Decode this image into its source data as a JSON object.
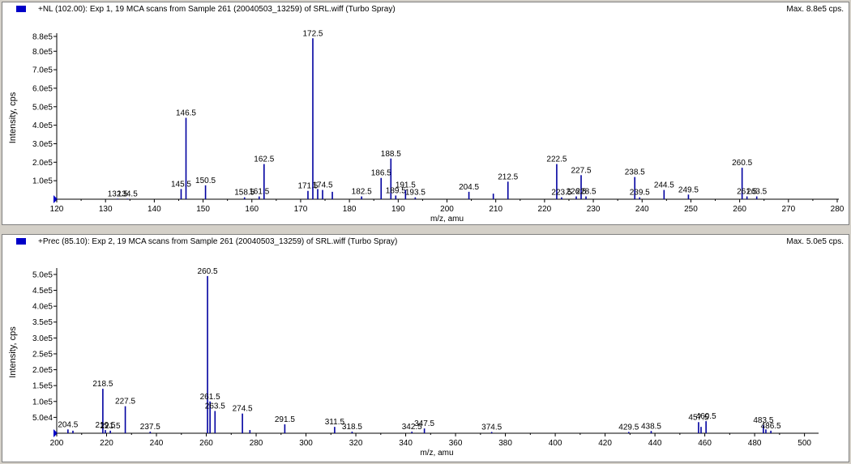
{
  "panels": [
    {
      "title": "+NL (102.00): Exp 1, 19 MCA scans from Sample 261 (20040503_13259) of SRL.wiff (Turbo Spray)",
      "max_label": "Max. 8.8e5 cps."
    },
    {
      "title": "+Prec (85.10): Exp 2, 19 MCA scans from Sample 261 (20040503_13259) of SRL.wiff (Turbo Spray)",
      "max_label": "Max. 5.0e5 cps."
    }
  ],
  "colors": {
    "trace": "#0000a0",
    "marker": "#0000c8",
    "axis": "#000000"
  },
  "chart_data": [
    {
      "type": "bar",
      "title": "+NL (102.00): Exp 1, 19 MCA scans from Sample 261 (20040503_13259) of SRL.wiff (Turbo Spray)",
      "xlabel": "m/z, amu",
      "ylabel": "Intensity, cps",
      "xlim": [
        120,
        280
      ],
      "ylim": [
        0,
        880000
      ],
      "xticks": [
        120,
        130,
        140,
        150,
        160,
        170,
        180,
        190,
        200,
        210,
        220,
        230,
        240,
        250,
        260,
        270,
        280
      ],
      "yticks": [
        {
          "v": 100000,
          "label": "1.0e5"
        },
        {
          "v": 200000,
          "label": "2.0e5"
        },
        {
          "v": 300000,
          "label": "3.0e5"
        },
        {
          "v": 400000,
          "label": "4.0e5"
        },
        {
          "v": 500000,
          "label": "5.0e5"
        },
        {
          "v": 600000,
          "label": "6.0e5"
        },
        {
          "v": 700000,
          "label": "7.0e5"
        },
        {
          "v": 800000,
          "label": "8.0e5"
        },
        {
          "v": 880000,
          "label": "8.8e5"
        }
      ],
      "peaks": [
        {
          "x": 132.5,
          "y": 3000,
          "label": "132.5"
        },
        {
          "x": 134.5,
          "y": 3000,
          "label": "134.5"
        },
        {
          "x": 145.5,
          "y": 55000,
          "label": "145.5"
        },
        {
          "x": 146.5,
          "y": 440000,
          "label": "146.5"
        },
        {
          "x": 150.5,
          "y": 75000,
          "label": "150.5"
        },
        {
          "x": 158.5,
          "y": 10000,
          "label": "158.5"
        },
        {
          "x": 161.5,
          "y": 15000,
          "label": "161.5"
        },
        {
          "x": 162.5,
          "y": 190000,
          "label": "162.5"
        },
        {
          "x": 171.5,
          "y": 45000,
          "label": "171.5"
        },
        {
          "x": 172.5,
          "y": 870000,
          "label": "172.5"
        },
        {
          "x": 173.5,
          "y": 55000,
          "label": ""
        },
        {
          "x": 174.5,
          "y": 50000,
          "label": "174.5"
        },
        {
          "x": 176.5,
          "y": 40000,
          "label": ""
        },
        {
          "x": 182.5,
          "y": 15000,
          "label": "182.5"
        },
        {
          "x": 186.5,
          "y": 115000,
          "label": "186.5"
        },
        {
          "x": 188.5,
          "y": 220000,
          "label": "188.5"
        },
        {
          "x": 189.5,
          "y": 20000,
          "label": "189.5"
        },
        {
          "x": 191.5,
          "y": 50000,
          "label": "191.5"
        },
        {
          "x": 193.5,
          "y": 10000,
          "label": "193.5"
        },
        {
          "x": 204.5,
          "y": 40000,
          "label": "204.5"
        },
        {
          "x": 209.5,
          "y": 30000,
          "label": ""
        },
        {
          "x": 212.5,
          "y": 95000,
          "label": "212.5"
        },
        {
          "x": 222.5,
          "y": 190000,
          "label": "222.5"
        },
        {
          "x": 223.5,
          "y": 10000,
          "label": "223.5"
        },
        {
          "x": 226.5,
          "y": 15000,
          "label": "226.5"
        },
        {
          "x": 227.5,
          "y": 130000,
          "label": "227.5"
        },
        {
          "x": 228.5,
          "y": 15000,
          "label": "228.5"
        },
        {
          "x": 238.5,
          "y": 120000,
          "label": "238.5"
        },
        {
          "x": 239.5,
          "y": 10000,
          "label": "239.5"
        },
        {
          "x": 244.5,
          "y": 50000,
          "label": "244.5"
        },
        {
          "x": 249.5,
          "y": 25000,
          "label": "249.5"
        },
        {
          "x": 260.5,
          "y": 170000,
          "label": "260.5"
        },
        {
          "x": 261.5,
          "y": 15000,
          "label": "261.5"
        },
        {
          "x": 263.5,
          "y": 15000,
          "label": "263.5"
        }
      ]
    },
    {
      "type": "bar",
      "title": "+Prec (85.10): Exp 2, 19 MCA scans from Sample 261 (20040503_13259) of SRL.wiff (Turbo Spray)",
      "xlabel": "m/z, amu",
      "ylabel": "Intensity, cps",
      "xlim": [
        200,
        505
      ],
      "ylim": [
        0,
        510000
      ],
      "xticks": [
        200,
        220,
        240,
        260,
        280,
        300,
        320,
        340,
        360,
        380,
        400,
        420,
        440,
        460,
        480,
        500
      ],
      "yticks": [
        {
          "v": 50000,
          "label": "5.0e4"
        },
        {
          "v": 100000,
          "label": "1.0e5"
        },
        {
          "v": 150000,
          "label": "1.5e5"
        },
        {
          "v": 200000,
          "label": "2.0e5"
        },
        {
          "v": 250000,
          "label": "2.5e5"
        },
        {
          "v": 300000,
          "label": "3.0e5"
        },
        {
          "v": 350000,
          "label": "3.5e5"
        },
        {
          "v": 400000,
          "label": "4.0e5"
        },
        {
          "v": 450000,
          "label": "4.5e5"
        },
        {
          "v": 500000,
          "label": "5.0e5"
        }
      ],
      "peaks": [
        {
          "x": 204.5,
          "y": 12000,
          "label": "204.5"
        },
        {
          "x": 206.5,
          "y": 8000,
          "label": ""
        },
        {
          "x": 218.5,
          "y": 140000,
          "label": "218.5"
        },
        {
          "x": 219.5,
          "y": 10000,
          "label": "219.5"
        },
        {
          "x": 221.5,
          "y": 8000,
          "label": "221.5"
        },
        {
          "x": 227.5,
          "y": 85000,
          "label": "227.5"
        },
        {
          "x": 237.5,
          "y": 5000,
          "label": "237.5"
        },
        {
          "x": 260.5,
          "y": 495000,
          "label": "260.5"
        },
        {
          "x": 261.5,
          "y": 100000,
          "label": "261.5"
        },
        {
          "x": 263.5,
          "y": 70000,
          "label": "263.5"
        },
        {
          "x": 274.5,
          "y": 62000,
          "label": "274.5"
        },
        {
          "x": 277.5,
          "y": 10000,
          "label": ""
        },
        {
          "x": 291.5,
          "y": 28000,
          "label": "291.5"
        },
        {
          "x": 311.5,
          "y": 20000,
          "label": "311.5"
        },
        {
          "x": 318.5,
          "y": 5000,
          "label": "318.5"
        },
        {
          "x": 342.5,
          "y": 5000,
          "label": "342.5"
        },
        {
          "x": 347.5,
          "y": 15000,
          "label": "347.5"
        },
        {
          "x": 374.5,
          "y": 4000,
          "label": "374.5"
        },
        {
          "x": 429.5,
          "y": 4000,
          "label": "429.5"
        },
        {
          "x": 438.5,
          "y": 7000,
          "label": "438.5"
        },
        {
          "x": 457.5,
          "y": 35000,
          "label": "457.5"
        },
        {
          "x": 458.5,
          "y": 20000,
          "label": ""
        },
        {
          "x": 460.5,
          "y": 38000,
          "label": "460.5"
        },
        {
          "x": 483.5,
          "y": 25000,
          "label": "483.5"
        },
        {
          "x": 484.5,
          "y": 12000,
          "label": ""
        },
        {
          "x": 486.5,
          "y": 8000,
          "label": "486.5"
        }
      ]
    }
  ]
}
